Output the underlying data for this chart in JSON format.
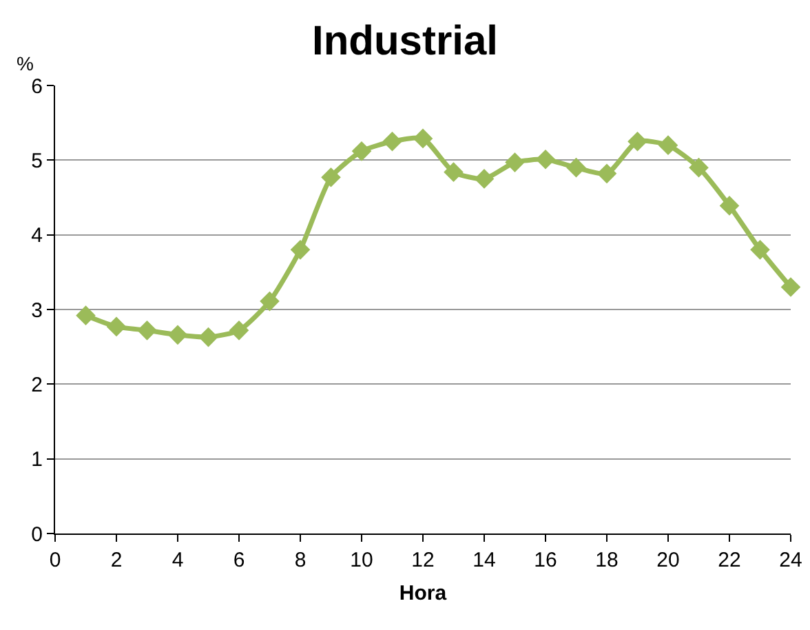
{
  "chart_data": {
    "type": "line",
    "title": "Industrial",
    "xlabel": "Hora",
    "ylabel": "%",
    "x": [
      1,
      2,
      3,
      4,
      5,
      6,
      7,
      8,
      9,
      10,
      11,
      12,
      13,
      14,
      15,
      16,
      17,
      18,
      19,
      20,
      21,
      22,
      23,
      24
    ],
    "series": [
      {
        "color": "#9bbb59",
        "values": [
          2.92,
          2.77,
          2.72,
          2.66,
          2.63,
          2.72,
          3.11,
          3.8,
          4.77,
          5.12,
          5.25,
          5.29,
          4.84,
          4.75,
          4.97,
          5.01,
          4.9,
          4.82,
          5.25,
          5.2,
          4.9,
          4.39,
          3.8,
          3.3
        ]
      }
    ],
    "xlim": [
      0,
      24
    ],
    "xticks": [
      0,
      2,
      4,
      6,
      8,
      10,
      12,
      14,
      16,
      18,
      20,
      22,
      24
    ],
    "ylim": [
      0,
      6
    ],
    "yticks": [
      0,
      1,
      2,
      3,
      4,
      5,
      6
    ],
    "grid": "y",
    "marker": "diamond",
    "line_style": "solid"
  }
}
